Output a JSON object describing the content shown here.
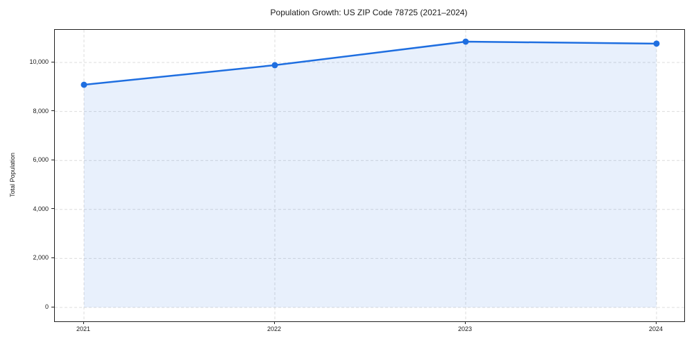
{
  "figure": {
    "background": "#ffffff",
    "spine_color": "#1f1f1f",
    "grid_color": "#dcdcdc",
    "text_color": "#1a1a1a"
  },
  "chart_data": {
    "type": "line",
    "title": "Population Growth: US ZIP Code 78725 (2021–2024)",
    "xlabel": "",
    "ylabel": "Total Population",
    "categories": [
      "2021",
      "2022",
      "2023",
      "2024"
    ],
    "x": [
      2021,
      2022,
      2023,
      2024
    ],
    "series": [
      {
        "name": "Total Population",
        "values": [
          9090,
          9890,
          10850,
          10770
        ]
      }
    ],
    "y_ticks": [
      0,
      2000,
      4000,
      6000,
      8000,
      10000
    ],
    "y_tick_labels": [
      "0",
      "2,000",
      "4,000",
      "6,000",
      "8,000",
      "10,000"
    ],
    "ylim": [
      -570,
      11330
    ],
    "xlim_padding_years": 0.15,
    "grid": true,
    "grid_style": "dashed",
    "legend_position": "none",
    "line_color": "#1e6ee0",
    "marker": "circle",
    "marker_color": "#1e6ee0",
    "fill_below": true,
    "fill_color": "#1e6ee0",
    "fill_opacity": 0.1,
    "fill_baseline": 0
  }
}
